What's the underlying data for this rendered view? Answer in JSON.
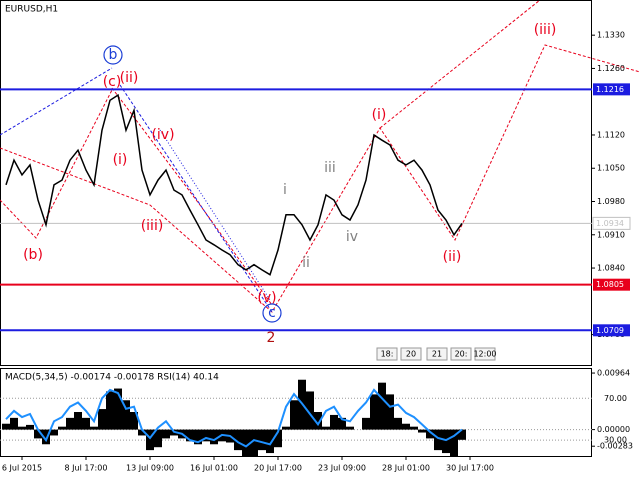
{
  "chart_data": [
    {
      "type": "line",
      "title": "EURUSD,H1",
      "xlim": [
        -0.75,
        73.25
      ],
      "ylim": [
        1.0636,
        1.1404
      ],
      "yticks": [
        {
          "value": 1.133,
          "label": "1.1330"
        },
        {
          "value": 1.126,
          "label": "1.1260"
        },
        {
          "value": 1.112,
          "label": "1.1120"
        },
        {
          "value": 1.105,
          "label": "1.1050"
        },
        {
          "value": 1.098,
          "label": "1.0980"
        },
        {
          "value": 1.091,
          "label": "1.0910"
        },
        {
          "value": 1.084,
          "label": "1.0840"
        },
        {
          "value": 1.07,
          "label": "1.0700"
        }
      ],
      "series": [
        {
          "color": "#000000",
          "values": [
            1.1015,
            1.1067,
            1.1036,
            1.1057,
            1.0983,
            1.0931,
            1.1015,
            1.1025,
            1.1067,
            1.1088,
            1.1046,
            1.1015,
            1.113,
            1.1193,
            1.1204,
            1.113,
            1.1172,
            1.1046,
            1.0994,
            1.1025,
            1.1046,
            1.1004,
            1.0994,
            1.0962,
            1.0931,
            1.0899,
            1.0889,
            1.0878,
            1.0868,
            1.0847,
            1.0836,
            1.0847,
            1.0836,
            1.0826,
            1.0878,
            1.0952,
            1.0952,
            1.0931,
            1.0899,
            1.0931,
            1.0994,
            1.0983,
            1.0952,
            1.0941,
            1.0973,
            1.1025,
            1.112,
            1.1109,
            1.1099,
            1.1067,
            1.1057,
            1.1067,
            1.1046,
            1.1015,
            1.0962,
            1.0941,
            1.091,
            1.0934
          ]
        }
      ],
      "levels": [
        {
          "value": 1.1216,
          "color": "#1c1ce0"
        },
        {
          "value": 1.0805,
          "color": "#e8001c"
        },
        {
          "value": 1.0709,
          "color": "#1c1ce0"
        }
      ],
      "current_price": 1.0934,
      "annotations": [
        {
          "text": "b",
          "color": "#1c3fd6"
        },
        {
          "text": "(c)",
          "color": "#e8001c"
        },
        {
          "text": "(ii)",
          "color": "#e8001c"
        },
        {
          "text": "(i)",
          "color": "#e8001c"
        },
        {
          "text": "(iv)",
          "color": "#e8001c"
        },
        {
          "text": "(iii)",
          "color": "#e8001c"
        },
        {
          "text": "(b)",
          "color": "#e8001c"
        },
        {
          "text": "i",
          "color": "#808080"
        },
        {
          "text": "ii",
          "color": "#808080"
        },
        {
          "text": "iii",
          "color": "#808080"
        },
        {
          "text": "iv",
          "color": "#808080"
        },
        {
          "text": "(i)",
          "color": "#e8001c"
        },
        {
          "text": "(ii)",
          "color": "#e8001c"
        },
        {
          "text": "(iii)",
          "color": "#e8001c"
        },
        {
          "text": "(v)",
          "color": "#e8001c"
        },
        {
          "text": "c",
          "color": "#1c3fd6"
        },
        {
          "text": "2",
          "color": "#b01010"
        }
      ]
    },
    {
      "type": "macd_rsi",
      "title": "MACD(5,34,5) -0.00174 -0.00178 RSI(14) 40.14",
      "xlim": [
        -0.75,
        73.25
      ],
      "xticks": [
        {
          "value": 2,
          "label": "6 Jul 2015"
        },
        {
          "value": 10,
          "label": "8 Jul 17:00"
        },
        {
          "value": 18,
          "label": "13 Jul 09:00"
        },
        {
          "value": 26,
          "label": "16 Jul 01:00"
        },
        {
          "value": 34,
          "label": "20 Jul 17:00"
        },
        {
          "value": 42,
          "label": "23 Jul 09:00"
        },
        {
          "value": 50,
          "label": "28 Jul 01:00"
        },
        {
          "value": 58,
          "label": "30 Jul 17:00"
        }
      ],
      "ylim": [
        -0.0045,
        0.0105
      ],
      "yticks": [
        0.00964,
        {
          "value": 0,
          "label": "0.00000"
        },
        -0.00283
      ],
      "y2lim": [
        14.8,
        99
      ],
      "y2ticks": [
        {
          "value": 70,
          "label": "70.00"
        },
        {
          "value": 30,
          "label": "30.00"
        }
      ],
      "series": [
        {
          "color": "#000000",
          "values": [
            0.001,
            0.002,
            0.0005,
            0.0008,
            -0.0015,
            -0.0025,
            -0.001,
            0.0005,
            0.002,
            0.003,
            0.002,
            0.0005,
            0.0035,
            0.0065,
            0.007,
            0.005,
            0.003,
            -0.001,
            -0.0035,
            -0.003,
            -0.0015,
            -0.001,
            -0.0015,
            -0.002,
            -0.0025,
            -0.002,
            -0.0025,
            -0.002,
            -0.0022,
            -0.0035,
            -0.0045,
            -0.0045,
            -0.0035,
            -0.004,
            -0.003,
            0.0005,
            0.005,
            0.0085,
            0.0065,
            0.003,
            0.0005,
            0.0025,
            0.002,
            0.0005,
            0,
            0.002,
            0.006,
            0.008,
            0.006,
            0.002,
            0.001,
            0.0005,
            -0.0005,
            -0.0015,
            -0.0035,
            -0.004,
            -0.0045,
            -0.00174
          ]
        },
        {
          "color": "#1e90ff",
          "axis": "y2",
          "values": [
            50,
            58,
            52,
            55,
            40,
            30,
            48,
            52,
            62,
            66,
            58,
            48,
            70,
            78,
            75,
            60,
            62,
            40,
            32,
            42,
            48,
            38,
            36,
            30,
            28,
            32,
            30,
            35,
            34,
            28,
            24,
            30,
            28,
            26,
            38,
            62,
            74,
            65,
            55,
            45,
            58,
            62,
            50,
            48,
            58,
            66,
            78,
            70,
            62,
            64,
            56,
            52,
            45,
            38,
            32,
            30,
            34,
            40.14
          ]
        }
      ]
    }
  ],
  "toolbar": [
    "18:",
    "20",
    "21",
    "20:",
    "12:00"
  ]
}
